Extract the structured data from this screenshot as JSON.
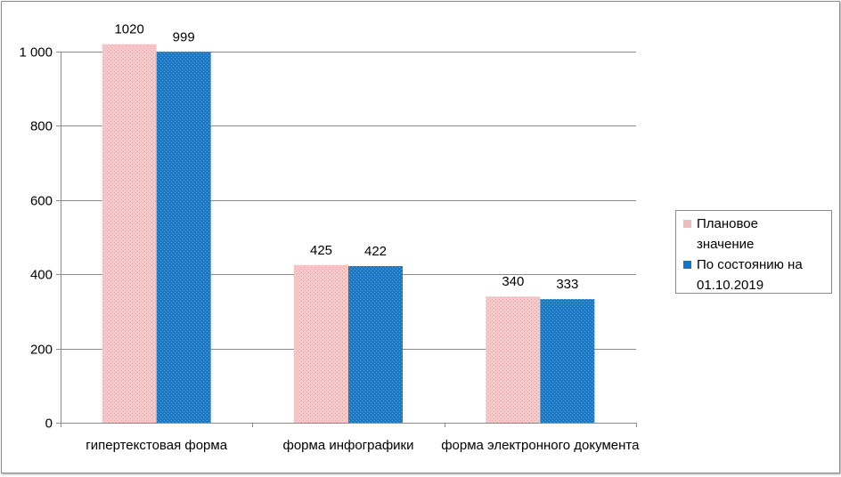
{
  "chart_data": {
    "type": "bar",
    "categories": [
      "гипертекстовая форма",
      "форма инфографики",
      "форма электронного документа"
    ],
    "series": [
      {
        "name": "Плановое\nзначение",
        "values": [
          1020,
          425,
          340
        ],
        "color": "#f2c8c8"
      },
      {
        "name": "По состоянию на\n01.10.2019",
        "values": [
          999,
          422,
          333
        ],
        "color": "#1874c0"
      }
    ],
    "data_labels": [
      [
        "1020",
        "425",
        "340"
      ],
      [
        "999",
        "422",
        "333"
      ]
    ],
    "y_ticks": [
      0,
      200,
      400,
      600,
      800,
      1000
    ],
    "y_tick_labels": [
      "0",
      "200",
      "400",
      "600",
      "800",
      "1 000"
    ],
    "ylim": [
      0,
      1000
    ],
    "grid": true,
    "legend_position": "right"
  }
}
